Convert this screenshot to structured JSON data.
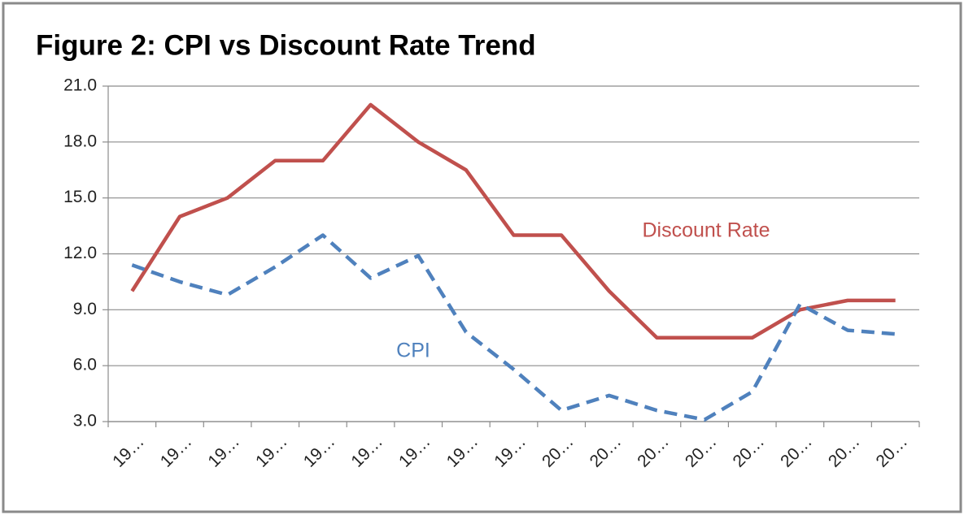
{
  "chart_data": {
    "type": "line",
    "title": "Figure 2: CPI vs Discount Rate Trend",
    "categories": [
      "19…",
      "19…",
      "19…",
      "19…",
      "19…",
      "19…",
      "19…",
      "19…",
      "19…",
      "20…",
      "20…",
      "20…",
      "20…",
      "20…",
      "20…",
      "20…",
      "20…"
    ],
    "series": [
      {
        "name": "Discount Rate",
        "color": "#c0504d",
        "dashed": false,
        "values": [
          10.0,
          14.0,
          15.0,
          17.0,
          17.0,
          20.0,
          18.0,
          16.5,
          13.0,
          13.0,
          10.0,
          7.5,
          7.5,
          7.5,
          9.0,
          9.5,
          9.5
        ]
      },
      {
        "name": "CPI",
        "color": "#4f81bd",
        "dashed": true,
        "values": [
          11.4,
          10.5,
          9.8,
          11.3,
          13.0,
          10.7,
          11.9,
          7.8,
          5.8,
          3.6,
          4.4,
          3.6,
          3.1,
          4.6,
          9.3,
          7.9,
          7.7
        ]
      }
    ],
    "ylim": [
      3,
      21
    ],
    "yticks": [
      {
        "value": 3,
        "label": "3.0"
      },
      {
        "value": 6,
        "label": "6.0"
      },
      {
        "value": 9,
        "label": "9.0"
      },
      {
        "value": 12,
        "label": "12.0"
      },
      {
        "value": 15,
        "label": "15.0"
      },
      {
        "value": 18,
        "label": "18.0"
      },
      {
        "value": 21,
        "label": "21.0"
      }
    ],
    "grid": true
  }
}
